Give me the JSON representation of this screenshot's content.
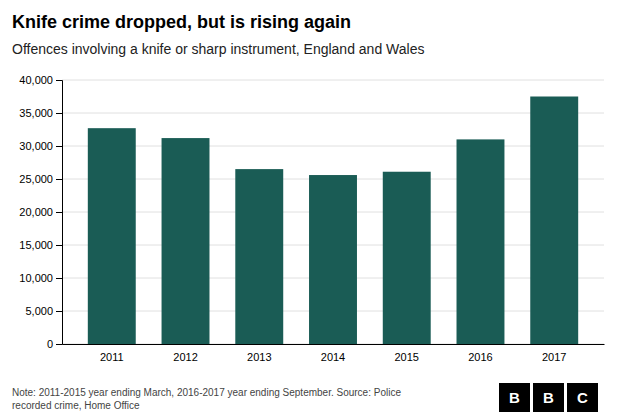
{
  "chart_data": {
    "type": "bar",
    "title": "Knife crime dropped, but is rising again",
    "subtitle": "Offences involving a knife or sharp instrument, England and Wales",
    "note": "Note: 2011-2015 year ending March, 2016-2017 year ending September. Source: Police\nrecorded crime, Home Office",
    "logo_letters": [
      "B",
      "B",
      "C"
    ],
    "categories": [
      "2011",
      "2012",
      "2013",
      "2014",
      "2015",
      "2016",
      "2017"
    ],
    "values": [
      32700,
      31200,
      26500,
      25600,
      26100,
      31000,
      37500
    ],
    "color": "#1a5c55",
    "ylim": [
      0,
      40000
    ],
    "yticks": [
      0,
      {
        "value": 5000,
        "label": "5,000"
      },
      {
        "value": 10000,
        "label": "10,000"
      },
      {
        "value": 15000,
        "label": "15,000"
      },
      {
        "value": 20000,
        "label": "20,000"
      },
      {
        "value": 25000,
        "label": "25,000"
      },
      {
        "value": 30000,
        "label": "30,000"
      },
      {
        "value": 35000,
        "label": "35,000"
      },
      {
        "value": 40000,
        "label": "40,000"
      }
    ],
    "grid": true
  }
}
